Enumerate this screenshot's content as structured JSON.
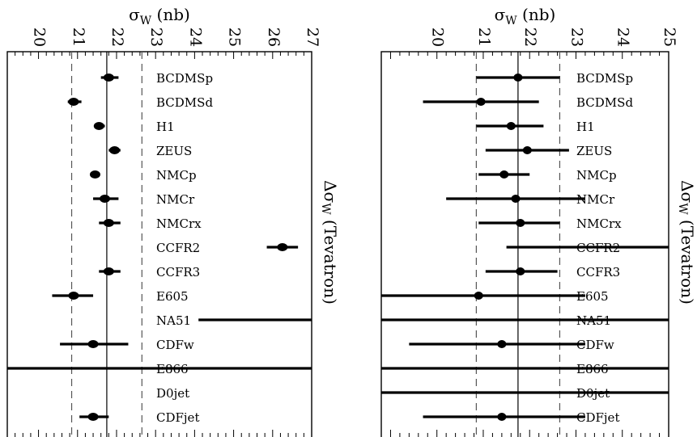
{
  "chart_data": [
    {
      "type": "scatter",
      "title": "σ_W (nb)",
      "xlim": [
        19.2,
        27
      ],
      "xticks": [
        20,
        21,
        22,
        23,
        24,
        25,
        26,
        27
      ],
      "side_label": "Δσ_W (Tevatron)",
      "central_value": 21.75,
      "band": [
        20.85,
        22.65
      ],
      "points": [
        {
          "name": "BCDMSp",
          "value": 21.8,
          "err_low": 21.6,
          "err_high": 22.05
        },
        {
          "name": "BCDMSd",
          "value": 20.9,
          "err_low": 20.75,
          "err_high": 21.1
        },
        {
          "name": "H1",
          "value": 21.55,
          "err_low": 21.45,
          "err_high": 21.7
        },
        {
          "name": "ZEUS",
          "value": 21.95,
          "err_low": 21.8,
          "err_high": 22.1
        },
        {
          "name": "NMCp",
          "value": 21.45,
          "err_low": 21.35,
          "err_high": 21.55
        },
        {
          "name": "NMCr",
          "value": 21.7,
          "err_low": 21.4,
          "err_high": 22.05
        },
        {
          "name": "NMCrx",
          "value": 21.8,
          "err_low": 21.55,
          "err_high": 22.1
        },
        {
          "name": "CCFR2",
          "value": 26.25,
          "err_low": 25.85,
          "err_high": 26.65
        },
        {
          "name": "CCFR3",
          "value": 21.8,
          "err_low": 21.55,
          "err_high": 22.1
        },
        {
          "name": "E605",
          "value": 20.9,
          "err_low": 20.35,
          "err_high": 21.4
        },
        {
          "name": "NA51",
          "value": null,
          "err_low": 24.1,
          "err_high": 27
        },
        {
          "name": "CDFw",
          "value": 21.4,
          "err_low": 20.55,
          "err_high": 22.3
        },
        {
          "name": "E866",
          "value": null,
          "err_low": 19.2,
          "err_high": 27
        },
        {
          "name": "D0jet",
          "value": null,
          "err_low": null,
          "err_high": null
        },
        {
          "name": "CDFjet",
          "value": 21.4,
          "err_low": 21.05,
          "err_high": 21.8
        }
      ]
    },
    {
      "type": "scatter",
      "title": "σ_W (nb)",
      "xlim": [
        18.8,
        25
      ],
      "xticks": [
        20,
        21,
        22,
        23,
        24,
        25
      ],
      "side_label": "Δσ_W (Tevatron)",
      "central_value": 21.75,
      "band": [
        20.85,
        22.65
      ],
      "points": [
        {
          "name": "BCDMSp",
          "value": 21.75,
          "err_low": 20.85,
          "err_high": 22.65
        },
        {
          "name": "BCDMSd",
          "value": 20.95,
          "err_low": 19.7,
          "err_high": 22.2
        },
        {
          "name": "H1",
          "value": 21.6,
          "err_low": 20.85,
          "err_high": 22.3
        },
        {
          "name": "ZEUS",
          "value": 21.95,
          "err_low": 21.05,
          "err_high": 22.85
        },
        {
          "name": "NMCp",
          "value": 21.45,
          "err_low": 20.9,
          "err_high": 22.0
        },
        {
          "name": "NMCr",
          "value": 21.7,
          "err_low": 20.2,
          "err_high": 23.2
        },
        {
          "name": "NMCrx",
          "value": 21.8,
          "err_low": 20.9,
          "err_high": 22.65
        },
        {
          "name": "CCFR2",
          "value": null,
          "err_low": 21.5,
          "err_high": 25
        },
        {
          "name": "CCFR3",
          "value": 21.8,
          "err_low": 21.05,
          "err_high": 22.6
        },
        {
          "name": "E605",
          "value": 20.9,
          "err_low": 18.8,
          "err_high": 23.2
        },
        {
          "name": "NA51",
          "value": null,
          "err_low": 18.8,
          "err_high": 25
        },
        {
          "name": "CDFw",
          "value": 21.4,
          "err_low": 19.4,
          "err_high": 23.2
        },
        {
          "name": "E866",
          "value": null,
          "err_low": 18.8,
          "err_high": 25
        },
        {
          "name": "D0jet",
          "value": null,
          "err_low": 18.8,
          "err_high": 25
        },
        {
          "name": "CDFjet",
          "value": 21.4,
          "err_low": 19.7,
          "err_high": 23.2
        }
      ]
    }
  ]
}
